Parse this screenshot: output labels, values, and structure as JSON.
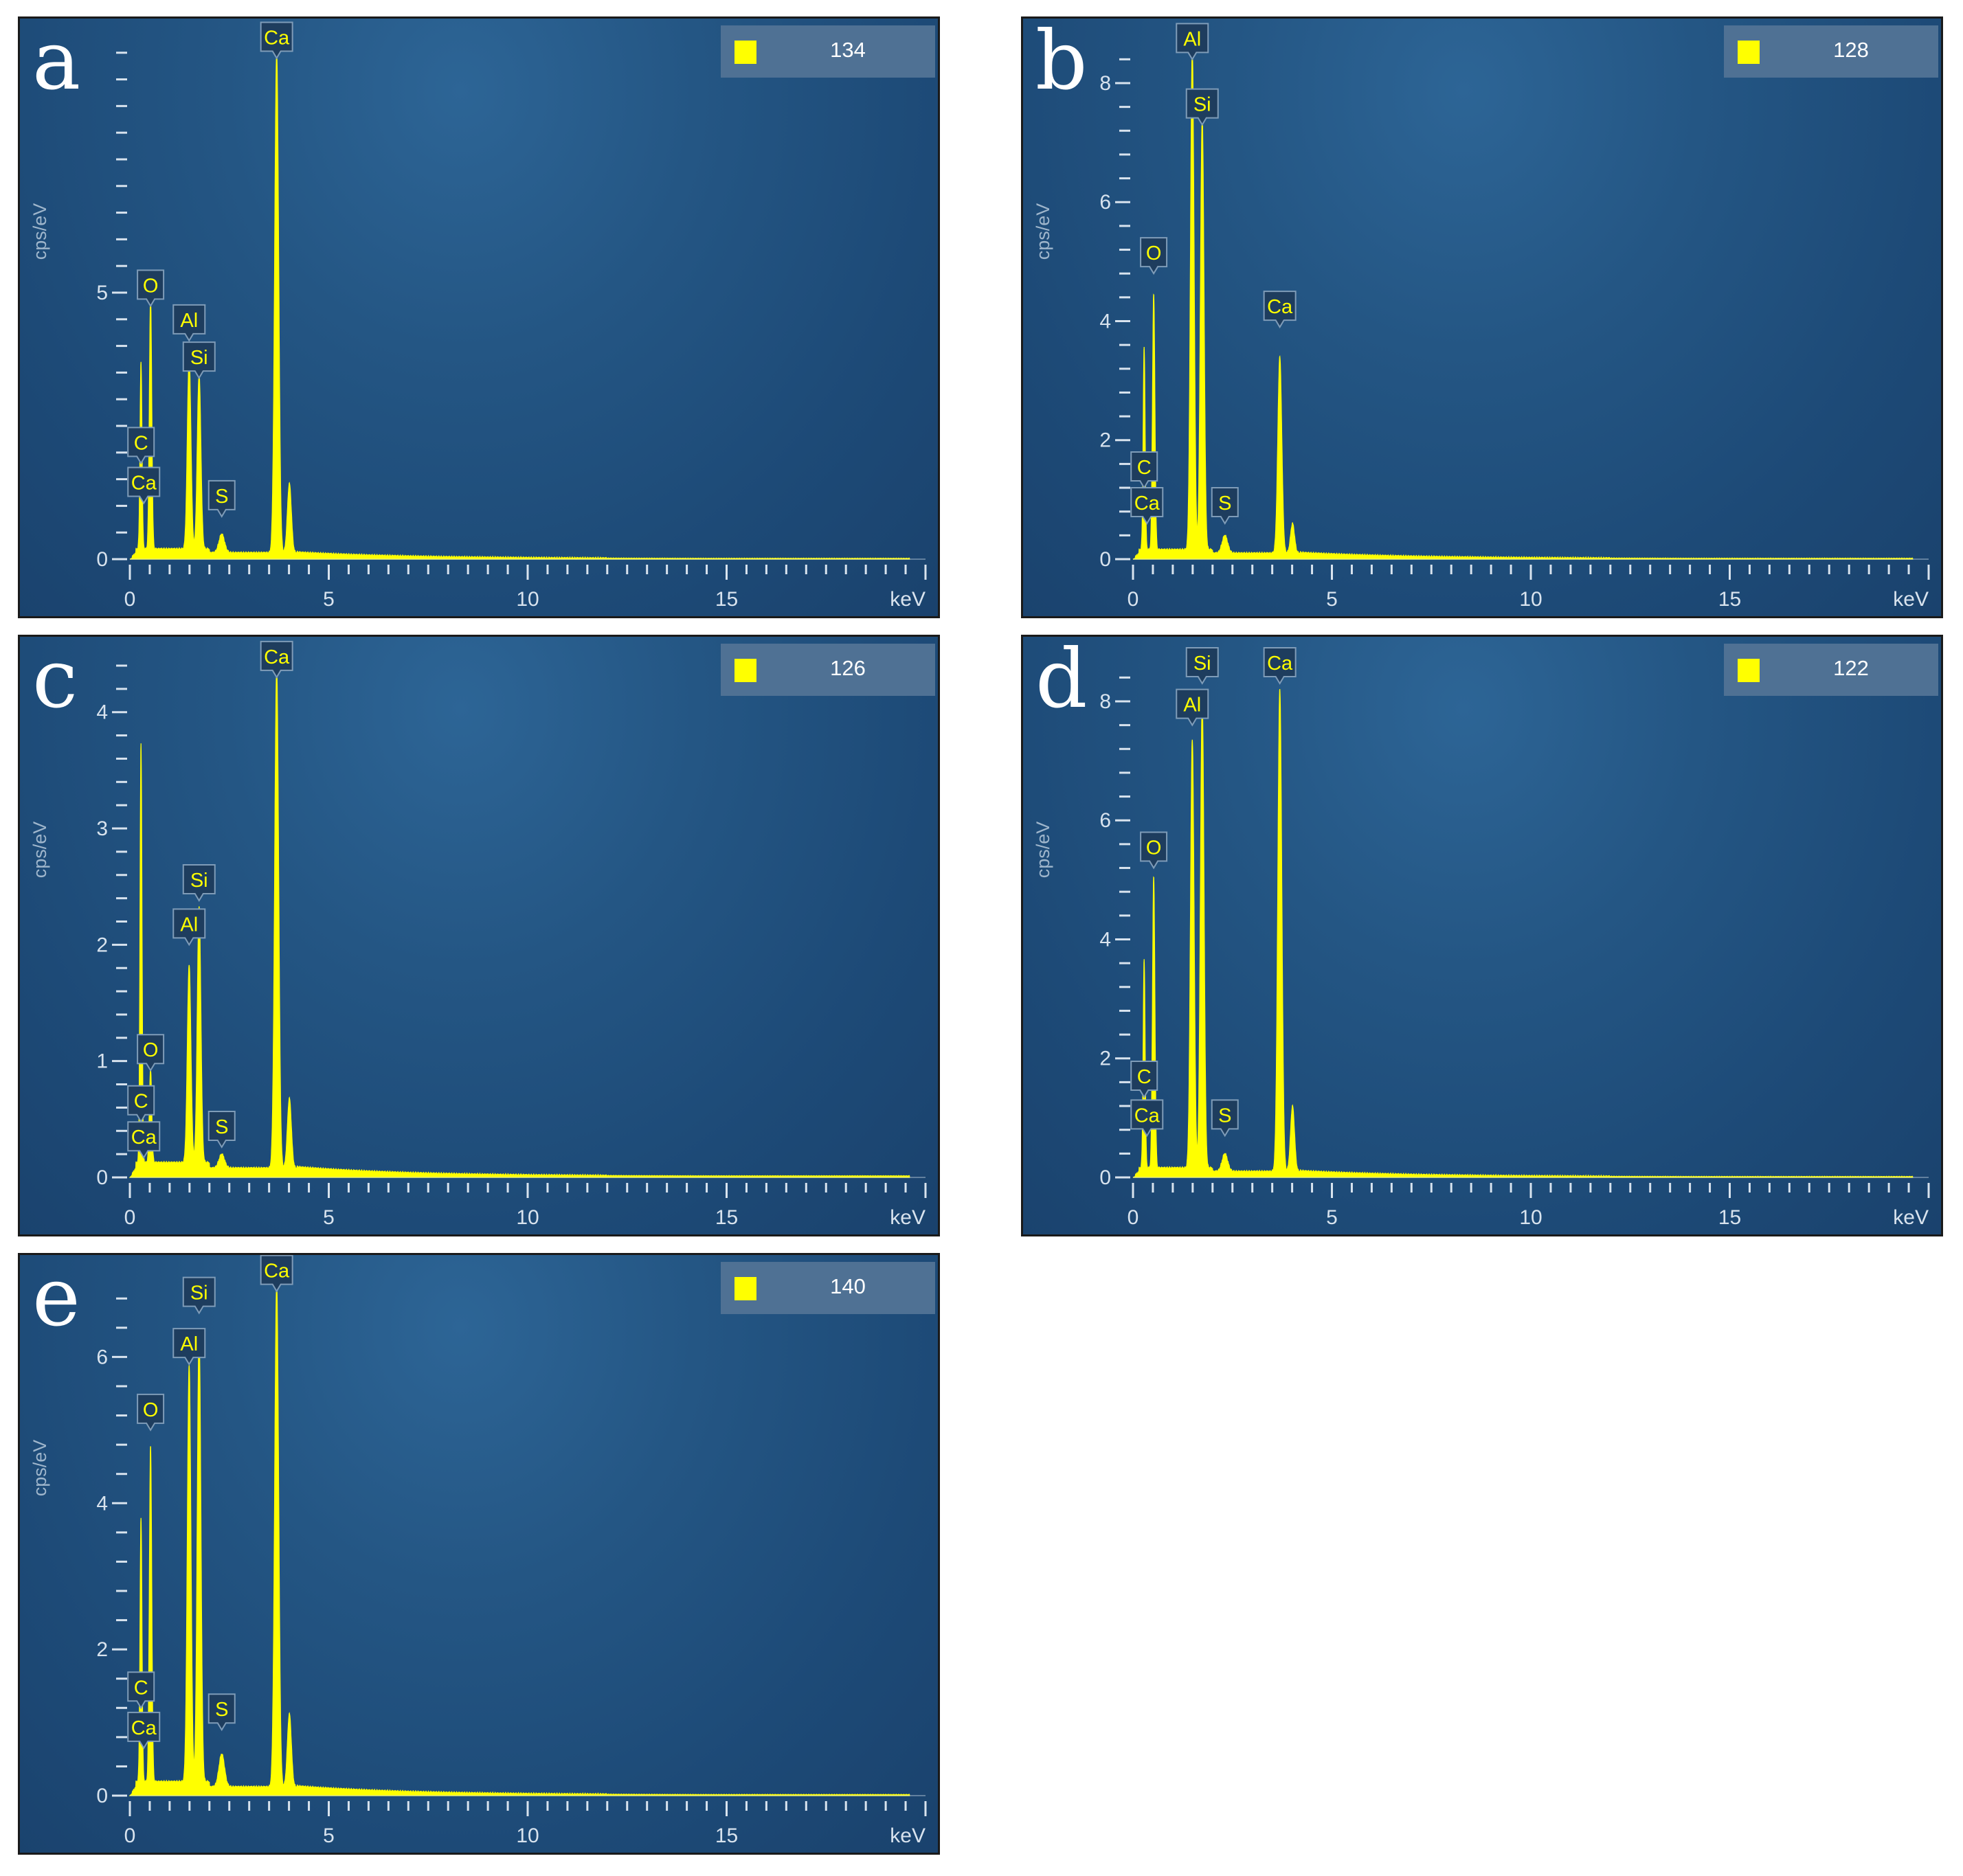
{
  "colors": {
    "spectrum": "#ffff00",
    "axis": "#d8e3ee",
    "label_text": "#ffff00",
    "background": "#1f4d7a"
  },
  "chart_data": [
    {
      "type": "area",
      "panel": "a",
      "legend_count": "134",
      "xlabel": "keV",
      "ylabel": "cps/eV",
      "xlim": [
        0,
        20
      ],
      "ylim": [
        0,
        9.6
      ],
      "x_ticks": [
        "0",
        "5",
        "10",
        "15"
      ],
      "y_ticks": [
        0,
        5
      ],
      "y_minor_step": 0.5,
      "baseline": 0.12,
      "peaks": [
        {
          "element": "C",
          "x": 0.28,
          "y": 3.5,
          "w": 0.025
        },
        {
          "element": "O",
          "x": 0.52,
          "y": 4.75,
          "w": 0.03
        },
        {
          "element": "Al",
          "x": 1.49,
          "y": 3.6,
          "w": 0.045
        },
        {
          "element": "Si",
          "x": 1.74,
          "y": 3.3,
          "w": 0.045
        },
        {
          "element": "S",
          "x": 2.31,
          "y": 0.35,
          "w": 0.07
        },
        {
          "element": "Ca",
          "x": 3.69,
          "y": 9.4,
          "w": 0.05
        },
        {
          "element": "",
          "x": 4.01,
          "y": 1.3,
          "w": 0.05
        }
      ],
      "labels": [
        {
          "text": "Ca",
          "x": 3.69,
          "y": 9.4
        },
        {
          "text": "O",
          "x": 0.52,
          "y": 4.75
        },
        {
          "text": "Al",
          "x": 1.49,
          "y": 4.1
        },
        {
          "text": "Si",
          "x": 1.74,
          "y": 3.4
        },
        {
          "text": "C",
          "x": 0.28,
          "y": 1.8
        },
        {
          "text": "Ca",
          "x": 0.35,
          "y": 1.05
        },
        {
          "text": "S",
          "x": 2.31,
          "y": 0.8
        }
      ]
    },
    {
      "type": "area",
      "panel": "b",
      "legend_count": "128",
      "xlabel": "keV",
      "ylabel": "cps/eV",
      "xlim": [
        0,
        20
      ],
      "ylim": [
        0,
        8.6
      ],
      "x_ticks": [
        "0",
        "5",
        "10",
        "15"
      ],
      "y_ticks": [
        0,
        2,
        4,
        6,
        8
      ],
      "y_minor_step": 0.4,
      "baseline": 0.1,
      "peaks": [
        {
          "element": "C",
          "x": 0.28,
          "y": 3.4,
          "w": 0.025
        },
        {
          "element": "O",
          "x": 0.52,
          "y": 4.3,
          "w": 0.03
        },
        {
          "element": "Al",
          "x": 1.49,
          "y": 8.4,
          "w": 0.045
        },
        {
          "element": "Si",
          "x": 1.74,
          "y": 7.3,
          "w": 0.045
        },
        {
          "element": "S",
          "x": 2.31,
          "y": 0.3,
          "w": 0.07
        },
        {
          "element": "Ca",
          "x": 3.69,
          "y": 3.3,
          "w": 0.05
        },
        {
          "element": "",
          "x": 4.01,
          "y": 0.5,
          "w": 0.05
        }
      ],
      "labels": [
        {
          "text": "Al",
          "x": 1.49,
          "y": 8.4
        },
        {
          "text": "Si",
          "x": 1.74,
          "y": 7.3
        },
        {
          "text": "O",
          "x": 0.52,
          "y": 4.8
        },
        {
          "text": "Ca",
          "x": 3.69,
          "y": 3.9
        },
        {
          "text": "C",
          "x": 0.28,
          "y": 1.2
        },
        {
          "text": "Ca",
          "x": 0.35,
          "y": 0.6
        },
        {
          "text": "S",
          "x": 2.31,
          "y": 0.6
        }
      ]
    },
    {
      "type": "area",
      "panel": "c",
      "legend_count": "126",
      "xlabel": "keV",
      "ylabel": "cps/eV",
      "xlim": [
        0,
        20
      ],
      "ylim": [
        0,
        4.4
      ],
      "x_ticks": [
        "0",
        "5",
        "10",
        "15"
      ],
      "y_ticks": [
        0,
        1,
        2,
        3,
        4
      ],
      "y_minor_step": 0.2,
      "baseline": 0.08,
      "peaks": [
        {
          "element": "C",
          "x": 0.28,
          "y": 3.6,
          "w": 0.025
        },
        {
          "element": "O",
          "x": 0.52,
          "y": 0.8,
          "w": 0.03
        },
        {
          "element": "Al",
          "x": 1.49,
          "y": 1.7,
          "w": 0.045
        },
        {
          "element": "Si",
          "x": 1.74,
          "y": 2.2,
          "w": 0.045
        },
        {
          "element": "S",
          "x": 2.31,
          "y": 0.12,
          "w": 0.07
        },
        {
          "element": "Ca",
          "x": 3.69,
          "y": 4.3,
          "w": 0.05
        },
        {
          "element": "",
          "x": 4.01,
          "y": 0.6,
          "w": 0.05
        }
      ],
      "labels": [
        {
          "text": "Ca",
          "x": 3.69,
          "y": 4.3
        },
        {
          "text": "Si",
          "x": 1.74,
          "y": 2.38
        },
        {
          "text": "Al",
          "x": 1.49,
          "y": 2.0
        },
        {
          "text": "O",
          "x": 0.52,
          "y": 0.92
        },
        {
          "text": "C",
          "x": 0.28,
          "y": 0.48
        },
        {
          "text": "Ca",
          "x": 0.35,
          "y": 0.17
        },
        {
          "text": "S",
          "x": 2.31,
          "y": 0.26
        }
      ]
    },
    {
      "type": "area",
      "panel": "d",
      "legend_count": "122",
      "xlabel": "keV",
      "ylabel": "cps/eV",
      "xlim": [
        0,
        20
      ],
      "ylim": [
        0,
        8.6
      ],
      "x_ticks": [
        "0",
        "5",
        "10",
        "15"
      ],
      "y_ticks": [
        0,
        2,
        4,
        6,
        8
      ],
      "y_minor_step": 0.4,
      "baseline": 0.1,
      "peaks": [
        {
          "element": "C",
          "x": 0.28,
          "y": 3.5,
          "w": 0.025
        },
        {
          "element": "O",
          "x": 0.52,
          "y": 4.9,
          "w": 0.03
        },
        {
          "element": "Al",
          "x": 1.49,
          "y": 7.2,
          "w": 0.045
        },
        {
          "element": "Si",
          "x": 1.74,
          "y": 7.9,
          "w": 0.045
        },
        {
          "element": "S",
          "x": 2.31,
          "y": 0.3,
          "w": 0.07
        },
        {
          "element": "Ca",
          "x": 3.69,
          "y": 8.1,
          "w": 0.05
        },
        {
          "element": "",
          "x": 4.01,
          "y": 1.1,
          "w": 0.05
        }
      ],
      "labels": [
        {
          "text": "Si",
          "x": 1.74,
          "y": 8.3
        },
        {
          "text": "Ca",
          "x": 3.69,
          "y": 8.3
        },
        {
          "text": "Al",
          "x": 1.49,
          "y": 7.6
        },
        {
          "text": "O",
          "x": 0.52,
          "y": 5.2
        },
        {
          "text": "C",
          "x": 0.28,
          "y": 1.35
        },
        {
          "text": "Ca",
          "x": 0.35,
          "y": 0.7
        },
        {
          "text": "S",
          "x": 2.31,
          "y": 0.7
        }
      ]
    },
    {
      "type": "area",
      "panel": "e",
      "legend_count": "140",
      "xlabel": "keV",
      "ylabel": "cps/eV",
      "xlim": [
        0,
        20
      ],
      "ylim": [
        0,
        7.0
      ],
      "x_ticks": [
        "0",
        "5",
        "10",
        "15"
      ],
      "y_ticks": [
        0,
        2,
        4,
        6
      ],
      "y_minor_step": 0.4,
      "baseline": 0.12,
      "peaks": [
        {
          "element": "C",
          "x": 0.28,
          "y": 3.6,
          "w": 0.025
        },
        {
          "element": "O",
          "x": 0.52,
          "y": 4.6,
          "w": 0.03
        },
        {
          "element": "Al",
          "x": 1.49,
          "y": 5.7,
          "w": 0.045
        },
        {
          "element": "Si",
          "x": 1.74,
          "y": 6.2,
          "w": 0.045
        },
        {
          "element": "S",
          "x": 2.31,
          "y": 0.45,
          "w": 0.07
        },
        {
          "element": "Ca",
          "x": 3.69,
          "y": 6.9,
          "w": 0.05
        },
        {
          "element": "",
          "x": 4.01,
          "y": 1.0,
          "w": 0.05
        }
      ],
      "labels": [
        {
          "text": "Si",
          "x": 1.74,
          "y": 6.6
        },
        {
          "text": "Ca",
          "x": 3.69,
          "y": 6.9
        },
        {
          "text": "Al",
          "x": 1.49,
          "y": 5.9
        },
        {
          "text": "O",
          "x": 0.52,
          "y": 5.0
        },
        {
          "text": "C",
          "x": 0.28,
          "y": 1.2
        },
        {
          "text": "Ca",
          "x": 0.35,
          "y": 0.65
        },
        {
          "text": "S",
          "x": 2.31,
          "y": 0.9
        }
      ]
    }
  ]
}
